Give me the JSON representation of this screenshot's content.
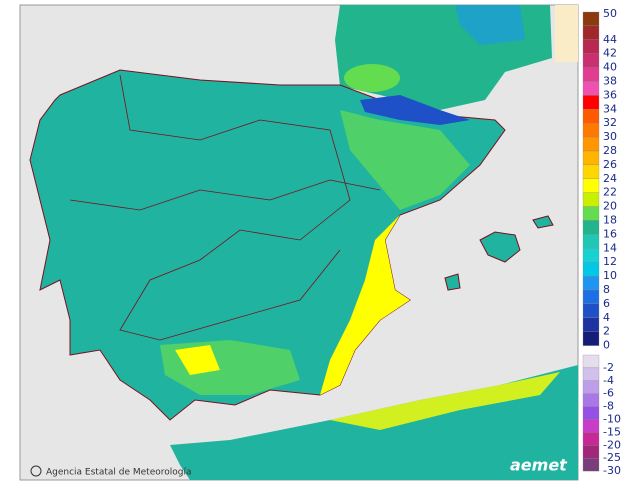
{
  "legend": {
    "upper": [
      {
        "value": 50,
        "color": "#8b3a0f"
      },
      {
        "value": 44,
        "color": "#a0282a"
      },
      {
        "value": 42,
        "color": "#b82850"
      },
      {
        "value": 40,
        "color": "#c83070"
      },
      {
        "value": 38,
        "color": "#e03c90"
      },
      {
        "value": 36,
        "color": "#f050b0"
      },
      {
        "value": 34,
        "color": "#ff0000"
      },
      {
        "value": 32,
        "color": "#ff5a00"
      },
      {
        "value": 30,
        "color": "#ff7800"
      },
      {
        "value": 28,
        "color": "#ff9600"
      },
      {
        "value": 26,
        "color": "#ffb400"
      },
      {
        "value": 24,
        "color": "#ffd700"
      },
      {
        "value": 22,
        "color": "#ffff00"
      },
      {
        "value": 20,
        "color": "#c8f000"
      },
      {
        "value": 18,
        "color": "#64dc50"
      },
      {
        "value": 16,
        "color": "#22b48c"
      },
      {
        "value": 14,
        "color": "#20c8b4"
      },
      {
        "value": 12,
        "color": "#18d2d2"
      },
      {
        "value": 10,
        "color": "#00c8e6"
      },
      {
        "value": 8,
        "color": "#1e96f0"
      },
      {
        "value": 6,
        "color": "#1e6ee6"
      },
      {
        "value": 4,
        "color": "#1e50c8"
      },
      {
        "value": 2,
        "color": "#1e32a0"
      },
      {
        "value": 0,
        "color": "#141e78"
      }
    ],
    "lower": [
      {
        "value": -2,
        "color": "#e6dcf0"
      },
      {
        "value": -4,
        "color": "#d2c0ec"
      },
      {
        "value": -6,
        "color": "#be9ee8"
      },
      {
        "value": -8,
        "color": "#aa78e6"
      },
      {
        "value": -10,
        "color": "#9650e6"
      },
      {
        "value": -15,
        "color": "#c83cc8"
      },
      {
        "value": -20,
        "color": "#c82896"
      },
      {
        "value": -25,
        "color": "#a0287a"
      },
      {
        "value": -30,
        "color": "#7a3c7a"
      }
    ]
  },
  "footer": {
    "credit": "Agencia Estatal de Meteorología",
    "logo": "aemet"
  }
}
